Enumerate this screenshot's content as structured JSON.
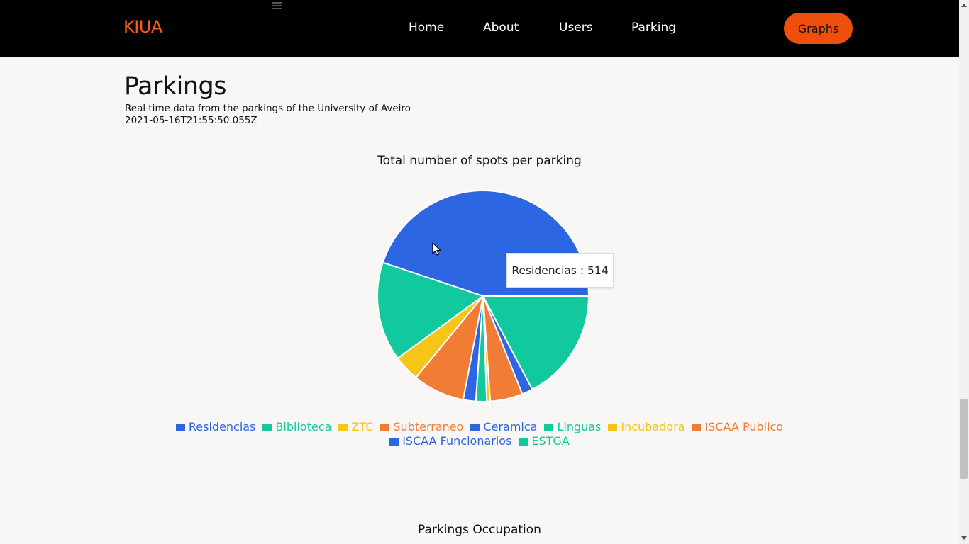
{
  "brand": "KIUA",
  "nav": {
    "items": [
      "Home",
      "About",
      "Users",
      "Parking"
    ],
    "graphs_label": "Graphs"
  },
  "page": {
    "title": "Parkings",
    "subtitle": "Real time data from the parkings of the University of Aveiro",
    "timestamp": "2021-05-16T21:55:50.055Z"
  },
  "chart_data": {
    "type": "pie",
    "title": "Total number of spots per parking",
    "categories": [
      "Residencias",
      "Biblioteca",
      "ZTC",
      "Subterraneo",
      "Ceramica",
      "Linguas",
      "Incubadora",
      "ISCAA Publico",
      "ISCAA Funcionarios",
      "ESTGA"
    ],
    "values": [
      514,
      174,
      46,
      91,
      22,
      19,
      6,
      57,
      19,
      198
    ],
    "colors": {
      "Residencias": "#2c66e3",
      "Biblioteca": "#12c99e",
      "ZTC": "#f5c518",
      "Subterraneo": "#f07c36",
      "Ceramica": "#2c66e3",
      "Linguas": "#12c99e",
      "Incubadora": "#f5c518",
      "ISCAA Publico": "#f07c36",
      "ISCAA Funcionarios": "#2c66e3",
      "ESTGA": "#12c99e"
    },
    "legend": "bottom",
    "tooltip": "Residencias : 514"
  },
  "occupation_title": "Parkings Occupation"
}
